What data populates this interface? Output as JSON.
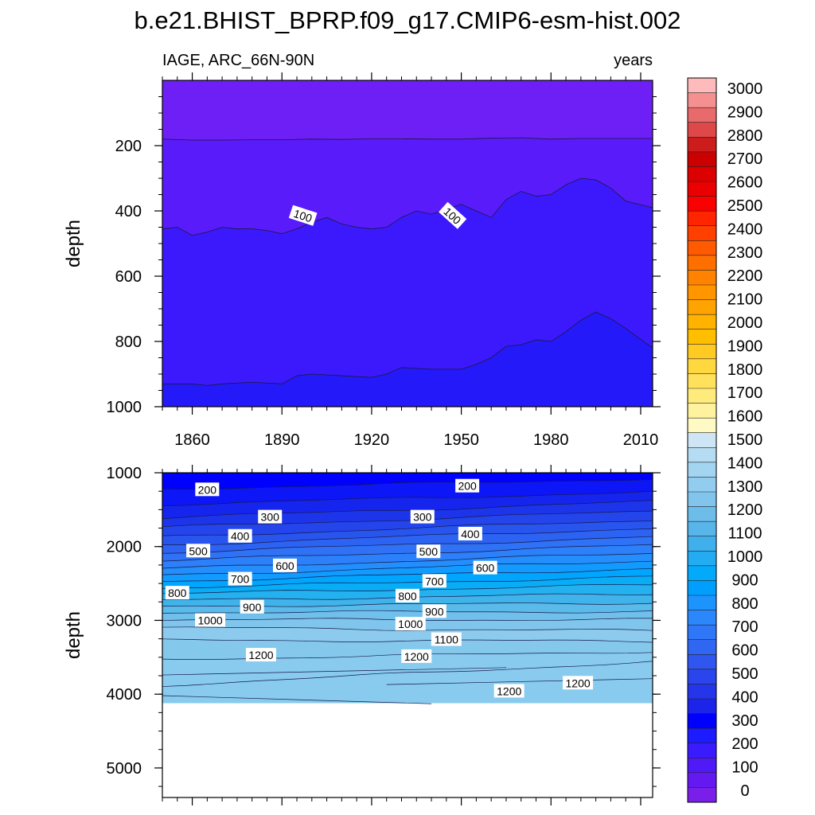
{
  "figure": {
    "title": "b.e21.BHIST_BPRP.f09_g17.CMIP6-esm-hist.002",
    "top_left_label": "IAGE, ARC_66N-90N",
    "top_right_label": "years"
  },
  "chart_data": [
    {
      "type": "heatmap",
      "panel": "upper",
      "ylabel": "depth",
      "xlabel": "",
      "x_range": [
        1850,
        2014
      ],
      "y_range": [
        0,
        1000
      ],
      "y_reversed": true,
      "xticks": [
        "1860",
        "1890",
        "1920",
        "1950",
        "1980",
        "2010"
      ],
      "yticks": [
        "200",
        "400",
        "600",
        "800",
        "1000"
      ],
      "contour_boundaries": [
        {
          "level": 50,
          "years": [
            1850,
            1860,
            1870,
            1880,
            1890,
            1900,
            1910,
            1920,
            1930,
            1940,
            1950,
            1960,
            1970,
            1980,
            1990,
            2000,
            2014
          ],
          "depths": [
            180,
            183,
            183,
            182,
            182,
            180,
            181,
            179,
            179,
            180,
            180,
            177,
            176,
            180,
            178,
            178,
            178
          ]
        },
        {
          "level": 100,
          "years": [
            1850,
            1855,
            1860,
            1865,
            1870,
            1875,
            1880,
            1885,
            1890,
            1895,
            1900,
            1905,
            1910,
            1915,
            1920,
            1925,
            1930,
            1935,
            1940,
            1945,
            1950,
            1955,
            1960,
            1965,
            1970,
            1975,
            1980,
            1985,
            1990,
            1995,
            2000,
            2005,
            2014
          ],
          "depths": [
            455,
            450,
            475,
            465,
            450,
            455,
            455,
            460,
            470,
            455,
            435,
            420,
            440,
            450,
            455,
            450,
            420,
            400,
            410,
            395,
            380,
            400,
            420,
            365,
            340,
            355,
            350,
            320,
            300,
            305,
            330,
            370,
            390
          ]
        },
        {
          "level": 150,
          "years": [
            1850,
            1860,
            1865,
            1870,
            1880,
            1890,
            1895,
            1900,
            1910,
            1920,
            1925,
            1930,
            1940,
            1950,
            1955,
            1960,
            1965,
            1970,
            1975,
            1980,
            1985,
            1990,
            1995,
            2000,
            2005,
            2014
          ],
          "depths": [
            930,
            930,
            935,
            930,
            925,
            930,
            905,
            900,
            905,
            910,
            900,
            880,
            885,
            885,
            870,
            850,
            815,
            810,
            795,
            800,
            770,
            735,
            710,
            730,
            760,
            820
          ]
        }
      ],
      "contour_labels": [
        {
          "text": "100",
          "x": 1897,
          "y": 415,
          "angle": 18
        },
        {
          "text": "100",
          "x": 1947,
          "y": 415,
          "angle": 42
        }
      ]
    },
    {
      "type": "heatmap",
      "panel": "lower",
      "ylabel": "depth",
      "xlabel": "",
      "x_range": [
        1850,
        2014
      ],
      "y_range": [
        1000,
        5400
      ],
      "y_reversed": true,
      "xticks": [],
      "yticks": [
        "1000",
        "2000",
        "3000",
        "4000",
        "5000"
      ],
      "ocean_floor_depth": 4120,
      "contour_levels": [
        200,
        250,
        300,
        350,
        400,
        450,
        500,
        550,
        600,
        650,
        700,
        750,
        800,
        850,
        900,
        950,
        1000,
        1050,
        1100,
        1150,
        1200
      ],
      "level_depths_at_1850": [
        1220,
        1430,
        1610,
        1740,
        1870,
        1980,
        2080,
        2190,
        2300,
        2390,
        2470,
        2560,
        2640,
        2730,
        2810,
        2890,
        2990,
        3100,
        3270,
        3530,
        3880
      ],
      "level_depths_at_2014": [
        1080,
        1260,
        1390,
        1520,
        1640,
        1750,
        1870,
        1980,
        2090,
        2190,
        2300,
        2410,
        2520,
        2640,
        2760,
        2880,
        2990,
        3140,
        3280,
        3420,
        3560
      ],
      "contour_labels": [
        {
          "text": "200",
          "x": 1865,
          "y": 1230
        },
        {
          "text": "200",
          "x": 1952,
          "y": 1180
        },
        {
          "text": "300",
          "x": 1886,
          "y": 1600
        },
        {
          "text": "300",
          "x": 1937,
          "y": 1600
        },
        {
          "text": "400",
          "x": 1876,
          "y": 1860
        },
        {
          "text": "400",
          "x": 1953,
          "y": 1830
        },
        {
          "text": "500",
          "x": 1862,
          "y": 2060
        },
        {
          "text": "500",
          "x": 1939,
          "y": 2070
        },
        {
          "text": "600",
          "x": 1891,
          "y": 2260
        },
        {
          "text": "600",
          "x": 1958,
          "y": 2290
        },
        {
          "text": "700",
          "x": 1876,
          "y": 2440
        },
        {
          "text": "700",
          "x": 1941,
          "y": 2470
        },
        {
          "text": "800",
          "x": 1855,
          "y": 2630
        },
        {
          "text": "800",
          "x": 1932,
          "y": 2670
        },
        {
          "text": "900",
          "x": 1880,
          "y": 2820
        },
        {
          "text": "900",
          "x": 1941,
          "y": 2880
        },
        {
          "text": "1000",
          "x": 1866,
          "y": 3000
        },
        {
          "text": "1000",
          "x": 1933,
          "y": 3050
        },
        {
          "text": "1100",
          "x": 1945,
          "y": 3260
        },
        {
          "text": "1200",
          "x": 1883,
          "y": 3470
        },
        {
          "text": "1200",
          "x": 1935,
          "y": 3490
        },
        {
          "text": "1200",
          "x": 1989,
          "y": 3850
        },
        {
          "text": "1200",
          "x": 1966,
          "y": 3960
        }
      ],
      "extra_lines": [
        {
          "years": [
            1850,
            1965
          ],
          "depths": [
            3740,
            3640
          ]
        },
        {
          "years": [
            1925,
            2014
          ],
          "depths": [
            3870,
            3790
          ]
        },
        {
          "years": [
            1850,
            1940
          ],
          "depths": [
            4020,
            4130
          ]
        }
      ]
    }
  ],
  "colorbar": {
    "labels": [
      "3000",
      "2900",
      "2800",
      "2700",
      "2600",
      "2500",
      "2400",
      "2300",
      "2200",
      "2100",
      "2000",
      "1900",
      "1800",
      "1700",
      "1600",
      "1500",
      "1400",
      "1300",
      "1200",
      "1100",
      "1000",
      "900",
      "800",
      "700",
      "600",
      "500",
      "400",
      "300",
      "200",
      "100",
      "0"
    ],
    "segments": [
      "#ffbbbb",
      "#f59090",
      "#e96a6a",
      "#de4848",
      "#cc1c1c",
      "#cb0000",
      "#dc0000",
      "#ea0000",
      "#fb0000",
      "#ff2500",
      "#ff4000",
      "#ff5a00",
      "#ff6f00",
      "#ff8200",
      "#ff9600",
      "#ffa300",
      "#ffb300",
      "#ffbf00",
      "#ffcb22",
      "#ffd73f",
      "#ffe15b",
      "#ffeb7b",
      "#fff29e",
      "#fff9c3",
      "#cde5f5",
      "#b5dcf2",
      "#a3d4f0",
      "#92ccee",
      "#81c4ec",
      "#6cbdea",
      "#58b5e9",
      "#3fb0ec",
      "#24acf2",
      "#03aaf9",
      "#009ffe",
      "#1d94fd",
      "#2b87fb",
      "#2f77f7",
      "#2f67f3",
      "#2f57ef",
      "#2a45ec",
      "#2435ea",
      "#1d24ea",
      "#0000ff",
      "#1d1bff",
      "#3a1bfd",
      "#5019f7",
      "#6519f1",
      "#7a1fea"
    ]
  }
}
